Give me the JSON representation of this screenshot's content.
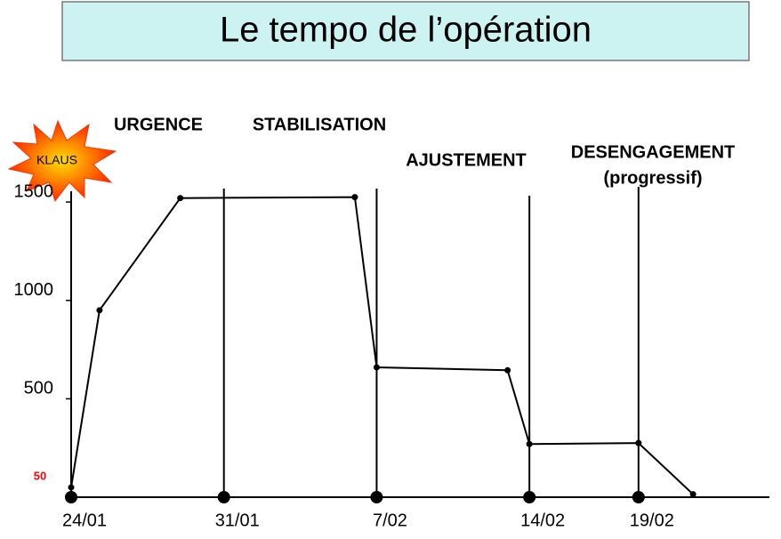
{
  "chart_data": {
    "type": "line",
    "title": "Le tempo de l’opération",
    "x": [
      0,
      1.3,
      5,
      13,
      14,
      20,
      21,
      26,
      28.5
    ],
    "values": [
      50,
      950,
      1520,
      1525,
      660,
      645,
      270,
      275,
      15
    ],
    "color": "#000000",
    "label_color": "#ff0000",
    "xlim": [
      0,
      32
    ],
    "xticks": [
      {
        "value": 0,
        "label": "24/01"
      },
      {
        "value": 7,
        "label": "31/01"
      },
      {
        "value": 14,
        "label": "7/02"
      },
      {
        "value": 21,
        "label": "14/02"
      },
      {
        "value": 26,
        "label": "19/02"
      }
    ],
    "ylim": [
      0,
      1600
    ],
    "yticks": [
      500,
      1000,
      1500
    ],
    "annotations": [
      "URGENCE",
      "STABILISATION",
      "AJUSTEMENT",
      "DESENGAGEMENT",
      "(progressif)",
      "KLAUS"
    ]
  }
}
